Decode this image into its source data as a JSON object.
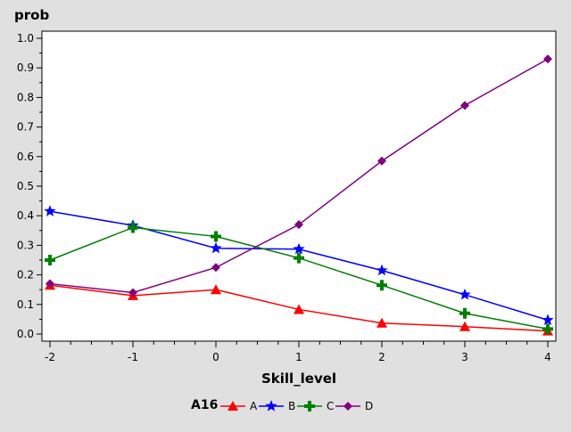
{
  "chart_data": {
    "type": "line",
    "ylabel": "prob",
    "xlabel": "Skill_level",
    "x": [
      -2,
      -1,
      0,
      1,
      2,
      3,
      4
    ],
    "xlim": [
      -2,
      4
    ],
    "ylim": [
      0,
      1.0
    ],
    "xticks": [
      "-2",
      "-1",
      "0",
      "1",
      "2",
      "3",
      "4"
    ],
    "yticks": [
      "0.0",
      "0.1",
      "0.2",
      "0.3",
      "0.4",
      "0.5",
      "0.6",
      "0.7",
      "0.8",
      "0.9",
      "1.0"
    ],
    "grid": false,
    "legend": {
      "title": "A16",
      "placement": "bottom-center"
    },
    "series": [
      {
        "name": "A",
        "color": "#ff0000",
        "marker": "triangle",
        "values": [
          0.165,
          0.13,
          0.15,
          0.083,
          0.037,
          0.025,
          0.01
        ]
      },
      {
        "name": "B",
        "color": "#0000ff",
        "marker": "star",
        "values": [
          0.415,
          0.367,
          0.29,
          0.287,
          0.215,
          0.133,
          0.047
        ]
      },
      {
        "name": "C",
        "color": "#008000",
        "marker": "plus",
        "values": [
          0.25,
          0.36,
          0.33,
          0.257,
          0.165,
          0.07,
          0.017
        ]
      },
      {
        "name": "D",
        "color": "#800080",
        "marker": "diamond",
        "values": [
          0.17,
          0.14,
          0.225,
          0.37,
          0.585,
          0.773,
          0.93
        ]
      }
    ]
  }
}
